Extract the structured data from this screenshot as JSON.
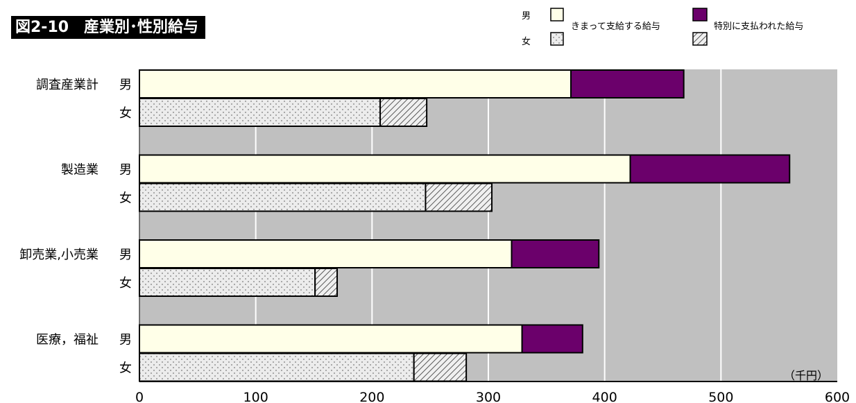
{
  "figure": {
    "title": "図2-10　産業別･性別給与",
    "unit_label": "（千円）"
  },
  "legend": {
    "male_marker": "男",
    "female_marker": "女",
    "regular_label": "きまって支給する給与",
    "special_label": "特別に支払われた給与"
  },
  "colors": {
    "plot_bg": "#c0c0c0",
    "male_regular": "#ffffe8",
    "male_special": "#6b006b",
    "female_regular_dots": "#e8e8e8",
    "female_special_hatch": "#e8e8e8",
    "gridline": "#ffffff"
  },
  "chart_data": {
    "type": "bar",
    "orientation": "horizontal",
    "stacked": true,
    "title": "図2-10　産業別･性別給与",
    "xlabel": "（千円）",
    "xlim": [
      0,
      600
    ],
    "xticks": [
      0,
      100,
      200,
      300,
      400,
      500,
      600
    ],
    "grid": true,
    "legend_position": "top-right",
    "categories": [
      {
        "industry": "調査産業計",
        "sex": "男",
        "regular": 371,
        "special": 97
      },
      {
        "industry": "",
        "sex": "女",
        "regular": 207,
        "special": 40
      },
      {
        "industry": "製造業",
        "sex": "男",
        "regular": 422,
        "special": 137
      },
      {
        "industry": "",
        "sex": "女",
        "regular": 246,
        "special": 57
      },
      {
        "industry": "卸売業,小売業",
        "sex": "男",
        "regular": 320,
        "special": 75
      },
      {
        "industry": "",
        "sex": "女",
        "regular": 151,
        "special": 19
      },
      {
        "industry": "医療，福祉",
        "sex": "男",
        "regular": 329,
        "special": 52
      },
      {
        "industry": "",
        "sex": "女",
        "regular": 236,
        "special": 45
      }
    ],
    "series": [
      {
        "name": "きまって支給する給与",
        "key": "regular"
      },
      {
        "name": "特別に支払われた給与",
        "key": "special"
      }
    ]
  }
}
